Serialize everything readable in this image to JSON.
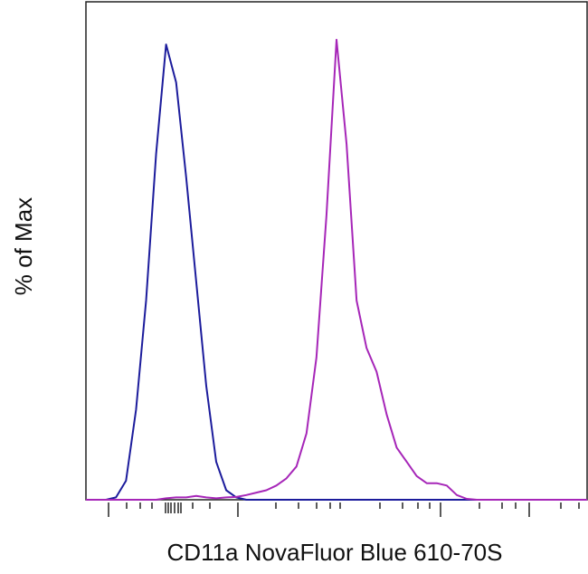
{
  "chart_data": {
    "type": "line",
    "y_label": "% of Max",
    "x_label": "CD11a NovaFluor Blue 610-70S",
    "xlim": [
      0,
      100
    ],
    "ylim": [
      0,
      105
    ],
    "x": [
      0,
      2,
      4,
      6,
      8,
      10,
      12,
      14,
      16,
      18,
      20,
      22,
      24,
      26,
      28,
      30,
      32,
      34,
      36,
      38,
      40,
      42,
      44,
      46,
      48,
      50,
      52,
      54,
      56,
      58,
      60,
      62,
      64,
      66,
      68,
      70,
      72,
      74,
      76,
      78,
      80,
      82,
      84,
      86,
      88,
      90,
      92,
      94,
      96,
      98,
      100
    ],
    "series": [
      {
        "color": "#1c1c9c",
        "values": [
          0,
          0,
          0,
          0.5,
          4,
          19,
          42,
          73,
          96,
          88,
          68,
          46,
          24,
          8,
          2,
          0.5,
          0,
          0,
          0,
          0,
          0,
          0,
          0,
          0,
          0,
          0,
          0,
          0,
          0,
          0,
          0,
          0,
          0,
          0,
          0,
          0,
          0,
          0,
          0,
          0,
          0,
          0,
          0,
          0,
          0,
          0,
          0,
          0,
          0,
          0,
          0
        ]
      },
      {
        "color": "#a626b8",
        "values": [
          0,
          0,
          0,
          0,
          0,
          0,
          0,
          0,
          0.3,
          0.5,
          0.5,
          0.8,
          0.5,
          0.3,
          0.5,
          0.6,
          1,
          1.5,
          2,
          3,
          4.5,
          7,
          14,
          30,
          60,
          97,
          75,
          42,
          32,
          27,
          18,
          11,
          8,
          5,
          3.5,
          3.5,
          3,
          1,
          0.2,
          0,
          0,
          0,
          0,
          0,
          0,
          0,
          0,
          0,
          0,
          0,
          0
        ]
      }
    ]
  }
}
